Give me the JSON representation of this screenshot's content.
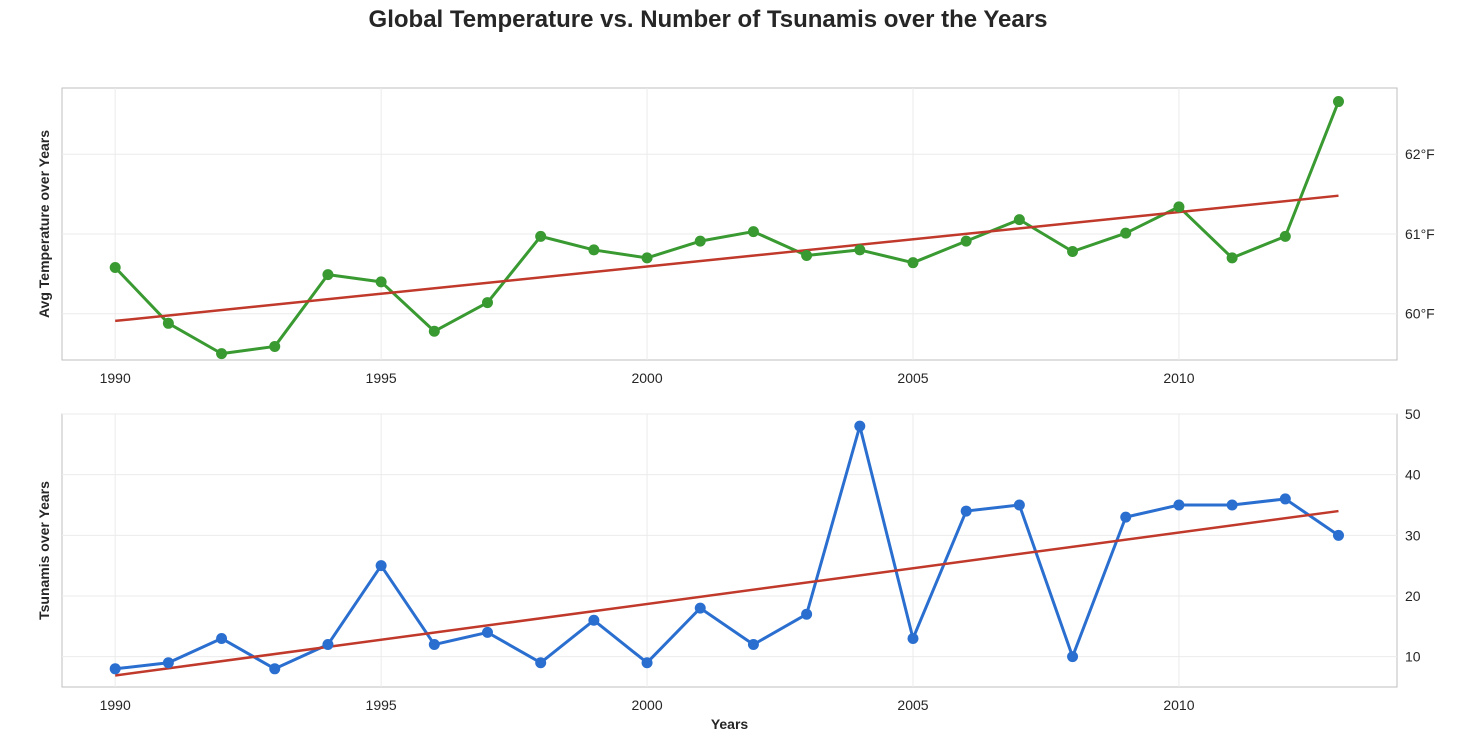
{
  "figure_title": "Global Temperature vs. Number of Tsunamis over the Years",
  "chart_data": [
    {
      "type": "line",
      "ylabel": "Avg Temperature over Years",
      "xlabel": "",
      "x": [
        1990,
        1991,
        1992,
        1993,
        1994,
        1995,
        1996,
        1997,
        1998,
        1999,
        2000,
        2001,
        2002,
        2003,
        2004,
        2005,
        2006,
        2007,
        2008,
        2009,
        2010,
        2011,
        2012,
        2013
      ],
      "series": [
        {
          "values": [
            60.58,
            59.88,
            59.5,
            59.59,
            60.49,
            60.4,
            59.78,
            60.14,
            60.97,
            60.8,
            60.7,
            60.91,
            61.03,
            60.73,
            60.8,
            60.64,
            60.91,
            61.18,
            60.78,
            61.01,
            61.34,
            60.7,
            60.97,
            62.66
          ],
          "color": "#3a9a32",
          "marker": "circle"
        }
      ],
      "trend": {
        "from": [
          1990,
          59.91
        ],
        "to": [
          2013,
          61.48
        ],
        "color": "#c0392b"
      },
      "xlim": [
        1989,
        2014.1
      ],
      "ylim": [
        59.42,
        62.83
      ],
      "xticks": [
        1990,
        1995,
        2000,
        2005,
        2010
      ],
      "xtick_labels": [
        "1990",
        "1995",
        "2000",
        "2005",
        "2010"
      ],
      "yticks": [
        60,
        61,
        62
      ],
      "ytick_labels": [
        "60°F",
        "61°F",
        "62°F"
      ],
      "y_axis_side": "right",
      "grid": true
    },
    {
      "type": "line",
      "ylabel": "Tsunamis over Years",
      "xlabel": "Years",
      "x": [
        1990,
        1991,
        1992,
        1993,
        1994,
        1995,
        1996,
        1997,
        1998,
        1999,
        2000,
        2001,
        2002,
        2003,
        2004,
        2005,
        2006,
        2007,
        2008,
        2009,
        2010,
        2011,
        2012,
        2013
      ],
      "series": [
        {
          "values": [
            8,
            9,
            13,
            8,
            12,
            25,
            12,
            14,
            9,
            16,
            9,
            18,
            12,
            17,
            48,
            13,
            34,
            35,
            10,
            33,
            35,
            35,
            36,
            30
          ],
          "color": "#2a6fd0",
          "marker": "circle"
        }
      ],
      "trend": {
        "from": [
          1990,
          6.9
        ],
        "to": [
          2013,
          34.0
        ],
        "color": "#c0392b"
      },
      "xlim": [
        1989,
        2014.1
      ],
      "ylim": [
        5,
        50
      ],
      "xticks": [
        1990,
        1995,
        2000,
        2005,
        2010
      ],
      "xtick_labels": [
        "1990",
        "1995",
        "2000",
        "2005",
        "2010"
      ],
      "yticks": [
        10,
        20,
        30,
        40,
        50
      ],
      "ytick_labels": [
        "10",
        "20",
        "30",
        "40",
        "50"
      ],
      "y_axis_side": "right",
      "grid": true
    }
  ]
}
